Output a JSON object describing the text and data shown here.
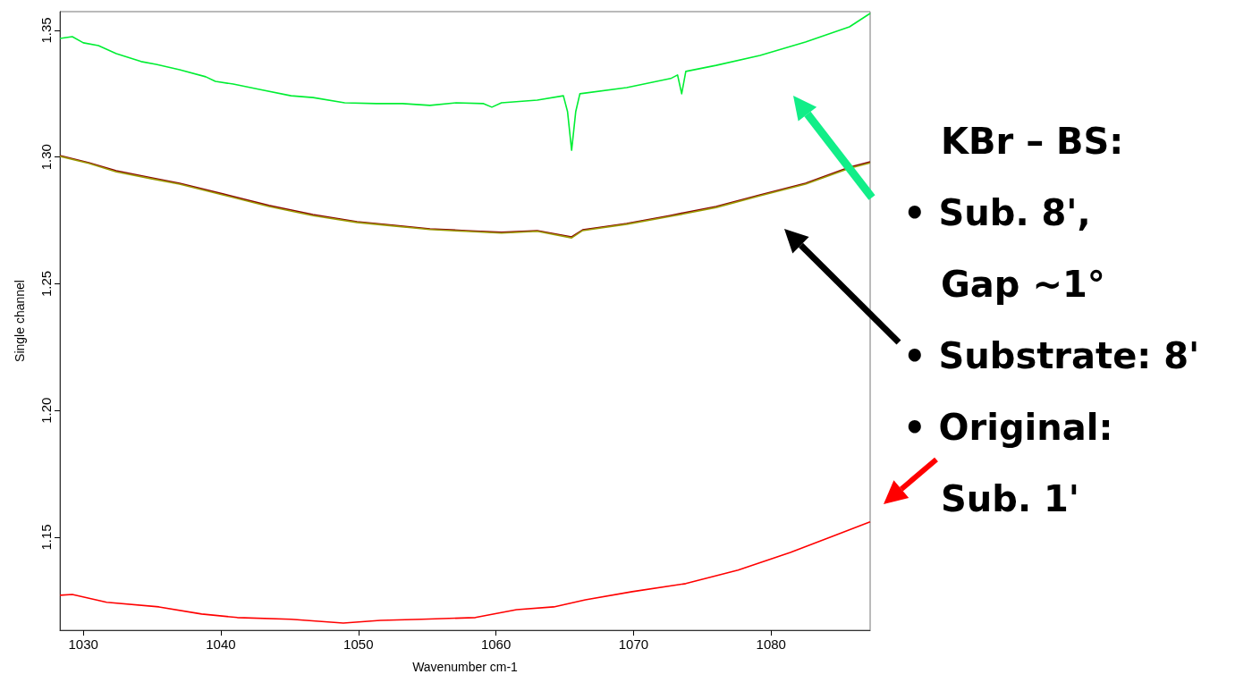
{
  "chart_data": {
    "type": "line",
    "xlabel": "Wavenumber cm-1",
    "ylabel": "Single channel",
    "xlim": [
      1028.3,
      1087.2
    ],
    "xticks": [
      1030,
      1040,
      1050,
      1060,
      1070,
      1080
    ],
    "ylim": [
      1.1133,
      1.3574
    ],
    "yticks": [
      1.15,
      {
        "value": 1.2,
        "label": "1.20"
      },
      1.25,
      {
        "value": 1.3,
        "label": "1.30"
      },
      1.35
    ],
    "marker": "none",
    "line_style": "solid",
    "annotations": [
      "KBr – BS:",
      "• Sub. 8',",
      "Gap ~1°",
      "• Substrate: 8'",
      "• Original:",
      "Sub. 1'"
    ],
    "series": [
      {
        "color": "#00ee33",
        "x": [
          1028.3,
          1029.2,
          1030,
          1031.1,
          1032.4,
          1034.2,
          1035.3,
          1037.0,
          1038.9,
          1039.6,
          1040.9,
          1042.8,
          1045.1,
          1046.7,
          1049.0,
          1051.3,
          1053.2,
          1055.2,
          1057.1,
          1059.1,
          1059.7,
          1060.4,
          1063.0,
          1064.9,
          1065.2,
          1065.5,
          1065.8,
          1066.1,
          1069.5,
          1072.7,
          1073.2,
          1073.5,
          1073.8,
          1076.0,
          1079.2,
          1082.5,
          1085.7,
          1087.2
        ],
        "values": [
          1.3468,
          1.3475,
          1.3451,
          1.344,
          1.3408,
          1.3377,
          1.3366,
          1.3345,
          1.3317,
          1.3299,
          1.3288,
          1.3267,
          1.3242,
          1.3235,
          1.3214,
          1.3211,
          1.3211,
          1.3204,
          1.3214,
          1.3211,
          1.3197,
          1.3214,
          1.3225,
          1.3242,
          1.318,
          1.3027,
          1.318,
          1.325,
          1.3274,
          1.331,
          1.3324,
          1.325,
          1.3338,
          1.3362,
          1.3401,
          1.3454,
          1.3514,
          1.3567
        ]
      },
      {
        "color": "#8b0000",
        "x": [
          1028.3,
          1030.4,
          1032.4,
          1035.0,
          1037.0,
          1040.2,
          1043.5,
          1046.7,
          1049.9,
          1052.6,
          1055.2,
          1057.8,
          1060.4,
          1063.0,
          1065.5,
          1066.3,
          1069.5,
          1072.7,
          1076.0,
          1079.2,
          1082.5,
          1085.7,
          1087.2
        ],
        "values": [
          1.3006,
          1.2978,
          1.2946,
          1.2918,
          1.2897,
          1.2854,
          1.2809,
          1.2773,
          1.2745,
          1.2731,
          1.2717,
          1.271,
          1.2703,
          1.271,
          1.2685,
          1.2713,
          1.2738,
          1.277,
          1.2805,
          1.2851,
          1.2897,
          1.296,
          1.2981
        ]
      },
      {
        "color": "#9a9a00",
        "x": [
          1028.3,
          1030.4,
          1032.4,
          1035.0,
          1037.0,
          1040.2,
          1043.5,
          1046.7,
          1049.9,
          1052.6,
          1055.2,
          1057.8,
          1060.4,
          1063.0,
          1065.5,
          1066.3,
          1069.5,
          1072.7,
          1076.0,
          1079.2,
          1082.5,
          1085.7,
          1087.2
        ],
        "values": [
          1.3003,
          1.2975,
          1.2942,
          1.2914,
          1.2893,
          1.285,
          1.2805,
          1.2769,
          1.2742,
          1.2728,
          1.2714,
          1.2707,
          1.27,
          1.2707,
          1.2681,
          1.271,
          1.2735,
          1.2766,
          1.2801,
          1.2847,
          1.2893,
          1.2956,
          1.2977
        ]
      },
      {
        "color": "#ff0000",
        "x": [
          1028.3,
          1029.2,
          1031.7,
          1035.5,
          1038.6,
          1041.2,
          1045.1,
          1048.9,
          1051.6,
          1054.6,
          1058.5,
          1061.5,
          1064.2,
          1066.5,
          1069.9,
          1073.8,
          1077.6,
          1081.4,
          1084.5,
          1087.2
        ],
        "values": [
          1.1271,
          1.1274,
          1.1243,
          1.1225,
          1.1197,
          1.1183,
          1.1176,
          1.1161,
          1.1172,
          1.1176,
          1.1183,
          1.1214,
          1.1225,
          1.1253,
          1.1285,
          1.1317,
          1.137,
          1.144,
          1.1504,
          1.1561
        ]
      }
    ]
  }
}
